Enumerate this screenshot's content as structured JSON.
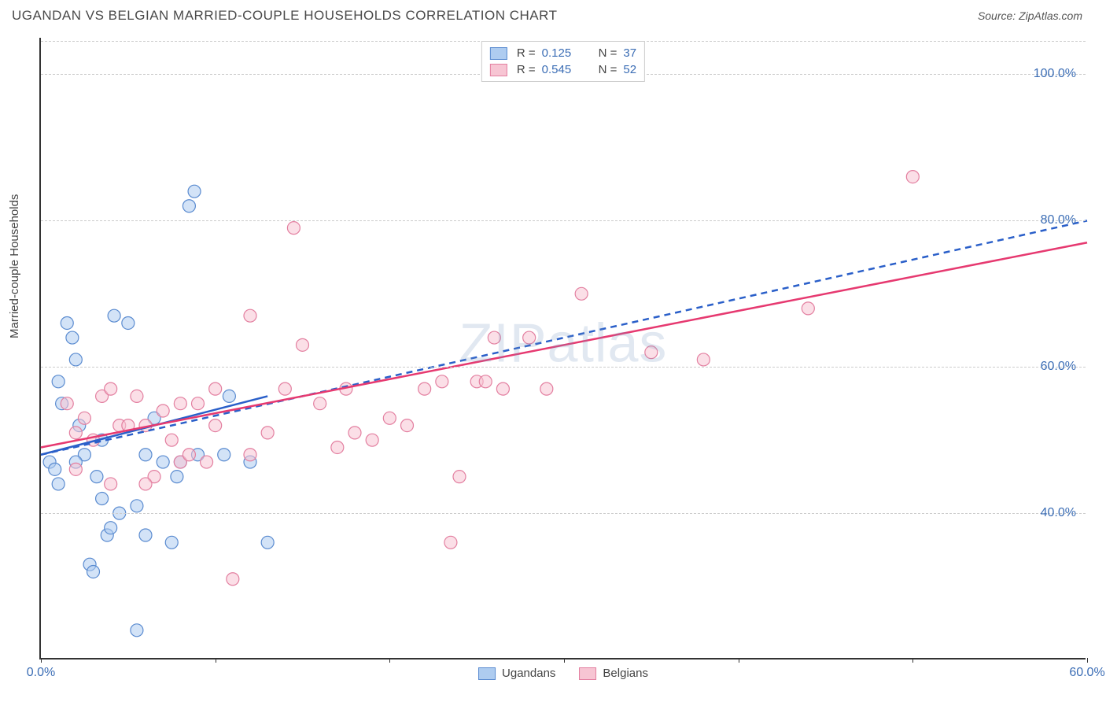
{
  "title": "UGANDAN VS BELGIAN MARRIED-COUPLE HOUSEHOLDS CORRELATION CHART",
  "source_label": "Source: ZipAtlas.com",
  "watermark": "ZIPatlas",
  "ylabel": "Married-couple Households",
  "chart": {
    "type": "scatter",
    "background_color": "#ffffff",
    "grid_color": "#cccccc",
    "axis_color": "#333333",
    "tick_label_color": "#3b6db5",
    "xlim": [
      0,
      60
    ],
    "ylim": [
      20,
      105
    ],
    "xticks": [
      0,
      10,
      20,
      30,
      40,
      50,
      60
    ],
    "xtick_labels": [
      "0.0%",
      "",
      "",
      "",
      "",
      "",
      "60.0%"
    ],
    "yticks": [
      40,
      60,
      80,
      100
    ],
    "ytick_labels": [
      "40.0%",
      "60.0%",
      "80.0%",
      "100.0%"
    ],
    "marker_radius": 8,
    "marker_opacity": 0.55,
    "line_width": 2.5,
    "series": [
      {
        "name": "Ugandans",
        "fill_color": "#aeccf0",
        "stroke_color": "#5a8bd0",
        "line_color": "#2a5fc9",
        "line_style": "dashed",
        "R": "0.125",
        "N": "37",
        "trend": {
          "x1": 0,
          "y1": 48,
          "x2": 60,
          "y2": 80
        },
        "short_trend": {
          "x1": 0,
          "y1": 48,
          "x2": 13,
          "y2": 56
        },
        "points": [
          [
            0.5,
            47
          ],
          [
            0.8,
            46
          ],
          [
            1.0,
            58
          ],
          [
            1.2,
            55
          ],
          [
            1.5,
            66
          ],
          [
            1.8,
            64
          ],
          [
            2.0,
            61
          ],
          [
            2.2,
            52
          ],
          [
            2.5,
            48
          ],
          [
            2.8,
            33
          ],
          [
            3.0,
            32
          ],
          [
            3.2,
            45
          ],
          [
            3.5,
            42
          ],
          [
            3.8,
            37
          ],
          [
            4.0,
            38
          ],
          [
            4.2,
            67
          ],
          [
            4.5,
            40
          ],
          [
            5.0,
            66
          ],
          [
            5.5,
            41
          ],
          [
            5.5,
            24
          ],
          [
            6.0,
            48
          ],
          [
            6.0,
            37
          ],
          [
            6.5,
            53
          ],
          [
            7.0,
            47
          ],
          [
            7.5,
            36
          ],
          [
            7.8,
            45
          ],
          [
            8.0,
            47
          ],
          [
            8.5,
            82
          ],
          [
            8.8,
            84
          ],
          [
            9.0,
            48
          ],
          [
            10.5,
            48
          ],
          [
            10.8,
            56
          ],
          [
            12,
            47
          ],
          [
            13,
            36
          ],
          [
            1.0,
            44
          ],
          [
            2.0,
            47
          ],
          [
            3.5,
            50
          ]
        ]
      },
      {
        "name": "Belgians",
        "fill_color": "#f7c5d3",
        "stroke_color": "#e37fa0",
        "line_color": "#e63970",
        "line_style": "solid",
        "R": "0.545",
        "N": "52",
        "trend": {
          "x1": 0,
          "y1": 49,
          "x2": 60,
          "y2": 77
        },
        "points": [
          [
            1.5,
            55
          ],
          [
            2,
            51
          ],
          [
            2.5,
            53
          ],
          [
            3,
            50
          ],
          [
            3.5,
            56
          ],
          [
            4,
            57
          ],
          [
            4.5,
            52
          ],
          [
            5,
            52
          ],
          [
            5.5,
            56
          ],
          [
            6,
            52
          ],
          [
            6.5,
            45
          ],
          [
            7,
            54
          ],
          [
            7.5,
            50
          ],
          [
            8,
            47
          ],
          [
            8.5,
            48
          ],
          [
            9,
            55
          ],
          [
            9.5,
            47
          ],
          [
            10,
            52
          ],
          [
            11,
            31
          ],
          [
            12,
            67
          ],
          [
            13,
            51
          ],
          [
            14,
            57
          ],
          [
            14.5,
            79
          ],
          [
            15,
            63
          ],
          [
            16,
            55
          ],
          [
            17,
            49
          ],
          [
            17.5,
            57
          ],
          [
            18,
            51
          ],
          [
            19,
            50
          ],
          [
            20,
            53
          ],
          [
            21,
            52
          ],
          [
            22,
            57
          ],
          [
            23,
            58
          ],
          [
            23.5,
            36
          ],
          [
            24,
            45
          ],
          [
            25,
            58
          ],
          [
            25.5,
            58
          ],
          [
            26,
            64
          ],
          [
            26.5,
            57
          ],
          [
            28,
            64
          ],
          [
            29,
            57
          ],
          [
            31,
            70
          ],
          [
            35,
            62
          ],
          [
            38,
            61
          ],
          [
            44,
            68
          ],
          [
            50,
            86
          ],
          [
            4,
            44
          ],
          [
            6,
            44
          ],
          [
            8,
            55
          ],
          [
            10,
            57
          ],
          [
            12,
            48
          ],
          [
            2,
            46
          ]
        ]
      }
    ]
  },
  "legend_top": {
    "R_prefix": "R =",
    "N_prefix": "N ="
  },
  "legend_bottom": [
    {
      "label": "Ugandans",
      "fill": "#aeccf0",
      "stroke": "#5a8bd0"
    },
    {
      "label": "Belgians",
      "fill": "#f7c5d3",
      "stroke": "#e37fa0"
    }
  ]
}
